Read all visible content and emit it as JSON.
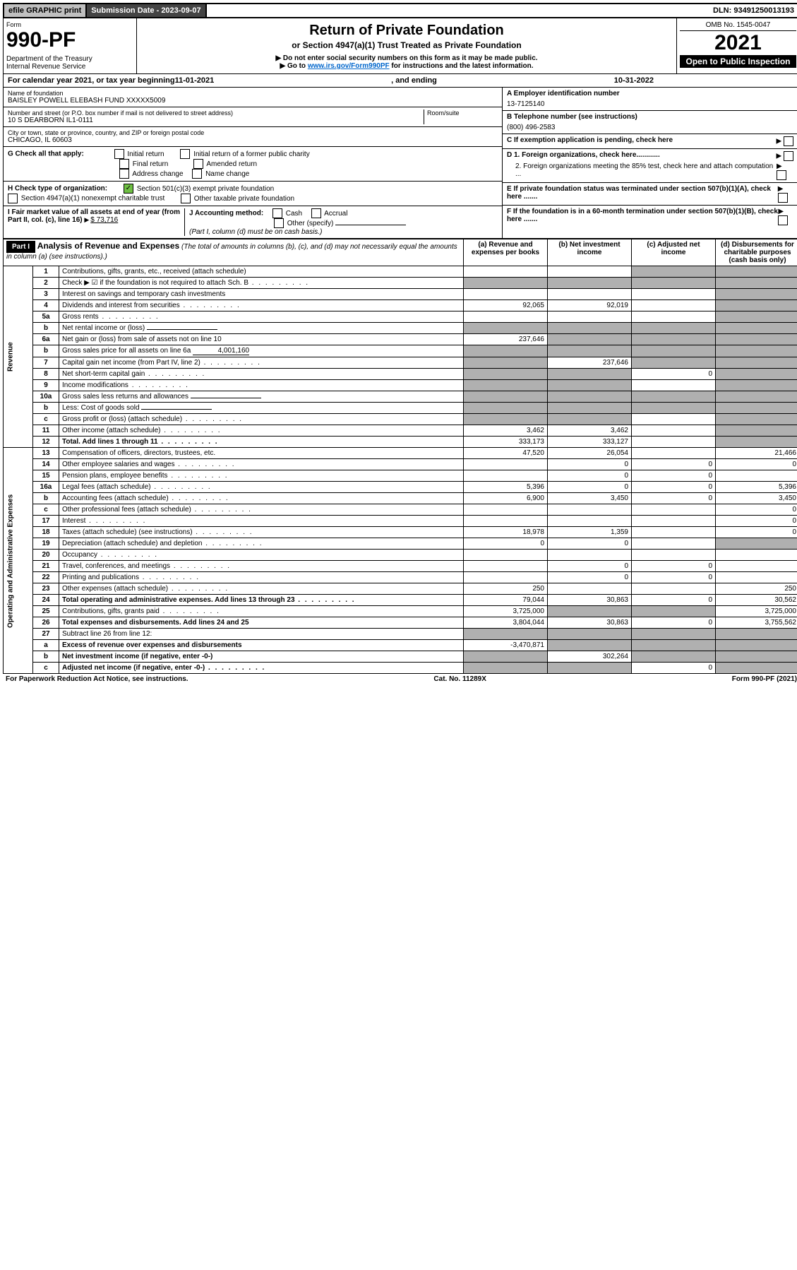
{
  "topbar": {
    "efile": "efile GRAPHIC print",
    "submission_label": "Submission Date - 2023-09-07",
    "dln": "DLN: 93491250013193"
  },
  "header": {
    "form_word": "Form",
    "form_number": "990-PF",
    "dept": "Department of the Treasury",
    "irs": "Internal Revenue Service",
    "title": "Return of Private Foundation",
    "subtitle": "or Section 4947(a)(1) Trust Treated as Private Foundation",
    "instr1": "▶ Do not enter social security numbers on this form as it may be made public.",
    "instr2_prefix": "▶ Go to ",
    "instr2_link": "www.irs.gov/Form990PF",
    "instr2_suffix": " for instructions and the latest information.",
    "omb": "OMB No. 1545-0047",
    "year": "2021",
    "inspect": "Open to Public Inspection"
  },
  "calendar": {
    "prefix": "For calendar year 2021, or tax year beginning ",
    "begin": "11-01-2021",
    "mid": " , and ending ",
    "end": "10-31-2022"
  },
  "entity": {
    "name_label": "Name of foundation",
    "name": "BAISLEY POWELL ELEBASH FUND XXXXX5009",
    "addr_label": "Number and street (or P.O. box number if mail is not delivered to street address)",
    "room_label": "Room/suite",
    "addr": "10 S DEARBORN IL1-0111",
    "city_label": "City or town, state or province, country, and ZIP or foreign postal code",
    "city": "CHICAGO, IL  60603",
    "ein_label": "A Employer identification number",
    "ein": "13-7125140",
    "phone_label": "B Telephone number (see instructions)",
    "phone": "(800) 496-2583"
  },
  "checks": {
    "c_label": "C If exemption application is pending, check here",
    "g_label": "G Check all that apply:",
    "g_opts": [
      "Initial return",
      "Initial return of a former public charity",
      "Final return",
      "Amended return",
      "Address change",
      "Name change"
    ],
    "d1": "D 1. Foreign organizations, check here............",
    "d2": "2. Foreign organizations meeting the 85% test, check here and attach computation ...",
    "h_label": "H Check type of organization:",
    "h1": "Section 501(c)(3) exempt private foundation",
    "h2": "Section 4947(a)(1) nonexempt charitable trust",
    "h3": "Other taxable private foundation",
    "e_label": "E  If private foundation status was terminated under section 507(b)(1)(A), check here .......",
    "i_label": "I Fair market value of all assets at end of year (from Part II, col. (c), line 16) ",
    "i_value": "$  73,716",
    "j_label": "J Accounting method:",
    "j_cash": "Cash",
    "j_accrual": "Accrual",
    "j_other": "Other (specify)",
    "j_note": "(Part I, column (d) must be on cash basis.)",
    "f_label": "F  If the foundation is in a 60-month termination under section 507(b)(1)(B), check here .......",
    "arrow": "▶"
  },
  "part1": {
    "label": "Part I",
    "title": "Analysis of Revenue and Expenses",
    "title_note": " (The total of amounts in columns (b), (c), and (d) may not necessarily equal the amounts in column (a) (see instructions).)",
    "col_a": "(a)   Revenue and expenses per books",
    "col_b": "(b)   Net investment income",
    "col_c": "(c)   Adjusted net income",
    "col_d": "(d)  Disbursements for charitable purposes (cash basis only)"
  },
  "sections": {
    "revenue": "Revenue",
    "expenses": "Operating and Administrative Expenses"
  },
  "rows": [
    {
      "n": "1",
      "d": "Contributions, gifts, grants, etc., received (attach schedule)",
      "a": "",
      "b": "",
      "c": "s",
      "dcol": "s"
    },
    {
      "n": "2",
      "d": "Check ▶ ☑ if the foundation is not required to attach Sch. B",
      "a": "s",
      "b": "s",
      "c": "s",
      "dcol": "s",
      "dots": true
    },
    {
      "n": "3",
      "d": "Interest on savings and temporary cash investments",
      "a": "",
      "b": "",
      "c": "",
      "dcol": "s"
    },
    {
      "n": "4",
      "d": "Dividends and interest from securities",
      "a": "92,065",
      "b": "92,019",
      "c": "",
      "dcol": "s",
      "dots": true
    },
    {
      "n": "5a",
      "d": "Gross rents",
      "a": "",
      "b": "",
      "c": "",
      "dcol": "s",
      "dots": true
    },
    {
      "n": "b",
      "d": "Net rental income or (loss)",
      "a": "s",
      "b": "s",
      "c": "s",
      "dcol": "s",
      "inline": true
    },
    {
      "n": "6a",
      "d": "Net gain or (loss) from sale of assets not on line 10",
      "a": "237,646",
      "b": "s",
      "c": "s",
      "dcol": "s"
    },
    {
      "n": "b",
      "d": "Gross sales price for all assets on line 6a",
      "a": "s",
      "b": "s",
      "c": "s",
      "dcol": "s",
      "inline_val": "4,001,160"
    },
    {
      "n": "7",
      "d": "Capital gain net income (from Part IV, line 2)",
      "a": "s",
      "b": "237,646",
      "c": "s",
      "dcol": "s",
      "dots": true
    },
    {
      "n": "8",
      "d": "Net short-term capital gain",
      "a": "s",
      "b": "s",
      "c": "0",
      "dcol": "s",
      "dots": true
    },
    {
      "n": "9",
      "d": "Income modifications",
      "a": "s",
      "b": "s",
      "c": "",
      "dcol": "s",
      "dots": true
    },
    {
      "n": "10a",
      "d": "Gross sales less returns and allowances",
      "a": "s",
      "b": "s",
      "c": "s",
      "dcol": "s",
      "inline": true
    },
    {
      "n": "b",
      "d": "Less: Cost of goods sold",
      "a": "s",
      "b": "s",
      "c": "s",
      "dcol": "s",
      "inline": true,
      "dots": true
    },
    {
      "n": "c",
      "d": "Gross profit or (loss) (attach schedule)",
      "a": "s",
      "b": "s",
      "c": "",
      "dcol": "s",
      "dots": true
    },
    {
      "n": "11",
      "d": "Other income (attach schedule)",
      "a": "3,462",
      "b": "3,462",
      "c": "",
      "dcol": "s",
      "dots": true
    },
    {
      "n": "12",
      "d": "Total. Add lines 1 through 11",
      "a": "333,173",
      "b": "333,127",
      "c": "",
      "dcol": "s",
      "bold": true,
      "dots": true
    }
  ],
  "exp_rows": [
    {
      "n": "13",
      "d": "Compensation of officers, directors, trustees, etc.",
      "a": "47,520",
      "b": "26,054",
      "c": "",
      "dcol": "21,466"
    },
    {
      "n": "14",
      "d": "Other employee salaries and wages",
      "a": "",
      "b": "0",
      "c": "0",
      "dcol": "0",
      "dots": true
    },
    {
      "n": "15",
      "d": "Pension plans, employee benefits",
      "a": "",
      "b": "0",
      "c": "0",
      "dcol": "",
      "dots": true
    },
    {
      "n": "16a",
      "d": "Legal fees (attach schedule)",
      "a": "5,396",
      "b": "0",
      "c": "0",
      "dcol": "5,396",
      "dots": true
    },
    {
      "n": "b",
      "d": "Accounting fees (attach schedule)",
      "a": "6,900",
      "b": "3,450",
      "c": "0",
      "dcol": "3,450",
      "dots": true
    },
    {
      "n": "c",
      "d": "Other professional fees (attach schedule)",
      "a": "",
      "b": "",
      "c": "",
      "dcol": "0",
      "dots": true
    },
    {
      "n": "17",
      "d": "Interest",
      "a": "",
      "b": "",
      "c": "",
      "dcol": "0",
      "dots": true
    },
    {
      "n": "18",
      "d": "Taxes (attach schedule) (see instructions)",
      "a": "18,978",
      "b": "1,359",
      "c": "",
      "dcol": "0",
      "dots": true
    },
    {
      "n": "19",
      "d": "Depreciation (attach schedule) and depletion",
      "a": "0",
      "b": "0",
      "c": "",
      "dcol": "s",
      "dots": true
    },
    {
      "n": "20",
      "d": "Occupancy",
      "a": "",
      "b": "",
      "c": "",
      "dcol": "",
      "dots": true
    },
    {
      "n": "21",
      "d": "Travel, conferences, and meetings",
      "a": "",
      "b": "0",
      "c": "0",
      "dcol": "",
      "dots": true
    },
    {
      "n": "22",
      "d": "Printing and publications",
      "a": "",
      "b": "0",
      "c": "0",
      "dcol": "",
      "dots": true
    },
    {
      "n": "23",
      "d": "Other expenses (attach schedule)",
      "a": "250",
      "b": "",
      "c": "",
      "dcol": "250",
      "dots": true
    },
    {
      "n": "24",
      "d": "Total operating and administrative expenses. Add lines 13 through 23",
      "a": "79,044",
      "b": "30,863",
      "c": "0",
      "dcol": "30,562",
      "bold": true,
      "dots": true
    },
    {
      "n": "25",
      "d": "Contributions, gifts, grants paid",
      "a": "3,725,000",
      "b": "s",
      "c": "s",
      "dcol": "3,725,000",
      "dots": true
    },
    {
      "n": "26",
      "d": "Total expenses and disbursements. Add lines 24 and 25",
      "a": "3,804,044",
      "b": "30,863",
      "c": "0",
      "dcol": "3,755,562",
      "bold": true
    },
    {
      "n": "27",
      "d": "Subtract line 26 from line 12:",
      "a": "s",
      "b": "s",
      "c": "s",
      "dcol": "s"
    },
    {
      "n": "a",
      "d": "Excess of revenue over expenses and disbursements",
      "a": "-3,470,871",
      "b": "s",
      "c": "s",
      "dcol": "s",
      "bold": true
    },
    {
      "n": "b",
      "d": "Net investment income (if negative, enter -0-)",
      "a": "s",
      "b": "302,264",
      "c": "s",
      "dcol": "s",
      "bold": true
    },
    {
      "n": "c",
      "d": "Adjusted net income (if negative, enter -0-)",
      "a": "s",
      "b": "s",
      "c": "0",
      "dcol": "s",
      "bold": true,
      "dots": true
    }
  ],
  "footer": {
    "left": "For Paperwork Reduction Act Notice, see instructions.",
    "mid": "Cat. No. 11289X",
    "right": "Form 990-PF (2021)"
  },
  "colors": {
    "shaded": "#b0b0b0",
    "link": "#0066cc",
    "check_green": "#6fbf44"
  }
}
